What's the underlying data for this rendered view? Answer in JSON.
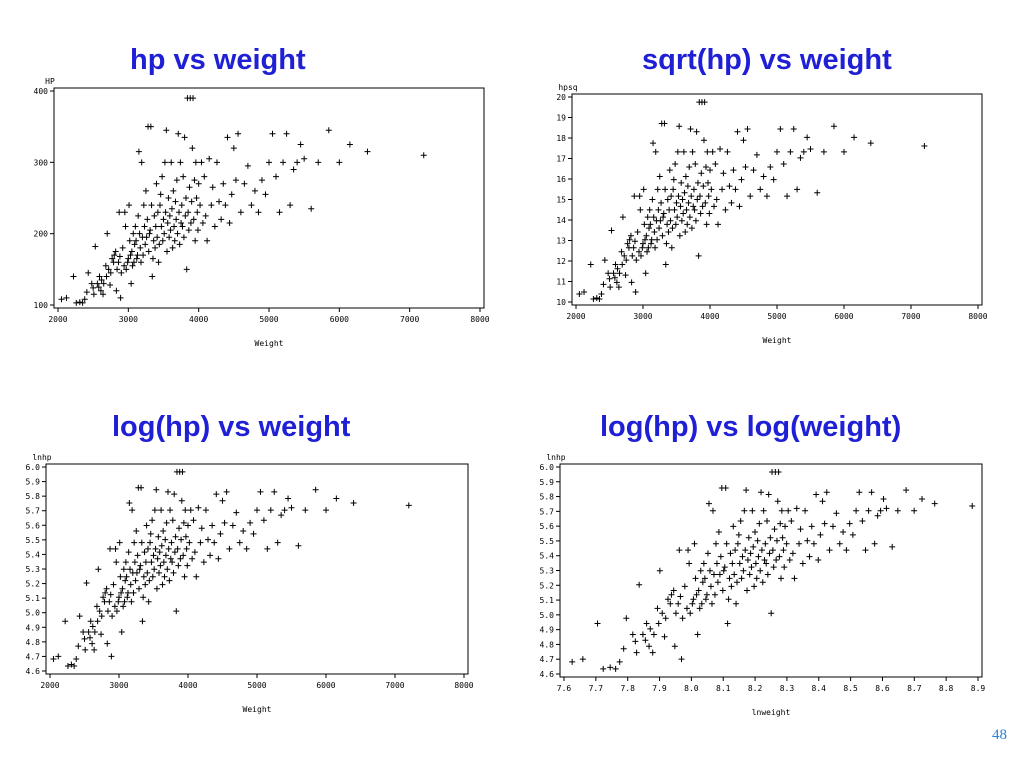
{
  "page": {
    "page_number": "48"
  },
  "colors": {
    "title": "#1f1fd6",
    "page_number": "#2a7fd6",
    "axes": "#000000",
    "marker": "#000000"
  },
  "chart_data": [
    {
      "type": "scatter",
      "title": "hp vs weight",
      "xlabel": "Weight",
      "ylabel": "HP",
      "xlim": [
        2000,
        8000
      ],
      "ylim": [
        100,
        400
      ],
      "xticks": [
        2000,
        3000,
        4000,
        5000,
        6000,
        7000,
        8000
      ],
      "yticks": [
        100,
        200,
        300,
        400
      ],
      "xtick_labels": [
        "2000",
        "3000",
        "4000",
        "5000",
        "6000",
        "7000",
        "8000"
      ],
      "ytick_labels": [
        "100",
        "200",
        "300",
        "400"
      ],
      "marker": "+",
      "grid": false
    },
    {
      "type": "scatter",
      "title": "sqrt(hp) vs weight",
      "xlabel": "Weight",
      "ylabel": "hpsq",
      "xlim": [
        2000,
        8000
      ],
      "ylim": [
        10,
        20
      ],
      "xticks": [
        2000,
        3000,
        4000,
        5000,
        6000,
        7000,
        8000
      ],
      "yticks": [
        10,
        11,
        12,
        13,
        14,
        15,
        16,
        17,
        18,
        19,
        20
      ],
      "xtick_labels": [
        "2000",
        "3000",
        "4000",
        "5000",
        "6000",
        "7000",
        "8000"
      ],
      "ytick_labels": [
        "10",
        "11",
        "12",
        "13",
        "14",
        "15",
        "16",
        "17",
        "18",
        "19",
        "20"
      ],
      "marker": "+",
      "grid": false
    },
    {
      "type": "scatter",
      "title": "log(hp) vs weight",
      "xlabel": "Weight",
      "ylabel": "lnhp",
      "xlim": [
        2000,
        8000
      ],
      "ylim": [
        4.6,
        6.0
      ],
      "xticks": [
        2000,
        3000,
        4000,
        5000,
        6000,
        7000,
        8000
      ],
      "yticks": [
        4.6,
        4.7,
        4.8,
        4.9,
        5.0,
        5.1,
        5.2,
        5.3,
        5.4,
        5.5,
        5.6,
        5.7,
        5.8,
        5.9,
        6.0
      ],
      "xtick_labels": [
        "2000",
        "3000",
        "4000",
        "5000",
        "6000",
        "7000",
        "8000"
      ],
      "ytick_labels": [
        "4.6",
        "4.7",
        "4.8",
        "4.9",
        "5.0",
        "5.1",
        "5.2",
        "5.3",
        "5.4",
        "5.5",
        "5.6",
        "5.7",
        "5.8",
        "5.9",
        "6.0"
      ],
      "marker": "+",
      "grid": false
    },
    {
      "type": "scatter",
      "title": "log(hp) vs log(weight)",
      "xlabel": "lnweight",
      "ylabel": "lnhp",
      "xlim": [
        7.6,
        8.9
      ],
      "ylim": [
        4.6,
        6.0
      ],
      "xticks": [
        7.6,
        7.7,
        7.8,
        7.9,
        8.0,
        8.1,
        8.2,
        8.3,
        8.4,
        8.5,
        8.6,
        8.7,
        8.8,
        8.9
      ],
      "yticks": [
        4.6,
        4.7,
        4.8,
        4.9,
        5.0,
        5.1,
        5.2,
        5.3,
        5.4,
        5.5,
        5.6,
        5.7,
        5.8,
        5.9,
        6.0
      ],
      "xtick_labels": [
        "7.6",
        "7.7",
        "7.8",
        "7.9",
        "8.0",
        "8.1",
        "8.2",
        "8.3",
        "8.4",
        "8.5",
        "8.6",
        "8.7",
        "8.8",
        "8.9"
      ],
      "ytick_labels": [
        "4.6",
        "4.7",
        "4.8",
        "4.9",
        "5.0",
        "5.1",
        "5.2",
        "5.3",
        "5.4",
        "5.5",
        "5.6",
        "5.7",
        "5.8",
        "5.9",
        "6.0"
      ],
      "marker": "+",
      "grid": false
    }
  ],
  "cars": {
    "columns": [
      "weight",
      "hp"
    ],
    "points": [
      [
        2050,
        108
      ],
      [
        2120,
        110
      ],
      [
        2220,
        140
      ],
      [
        2260,
        103
      ],
      [
        2310,
        104
      ],
      [
        2350,
        103
      ],
      [
        2380,
        108
      ],
      [
        2410,
        118
      ],
      [
        2430,
        145
      ],
      [
        2480,
        130
      ],
      [
        2500,
        124
      ],
      [
        2510,
        115
      ],
      [
        2530,
        182
      ],
      [
        2560,
        130
      ],
      [
        2580,
        125
      ],
      [
        2590,
        140
      ],
      [
        2610,
        120
      ],
      [
        2620,
        135
      ],
      [
        2640,
        115
      ],
      [
        2650,
        130
      ],
      [
        2680,
        155
      ],
      [
        2690,
        140
      ],
      [
        2700,
        200
      ],
      [
        2720,
        150
      ],
      [
        2740,
        128
      ],
      [
        2750,
        145
      ],
      [
        2770,
        165
      ],
      [
        2790,
        160
      ],
      [
        2800,
        170
      ],
      [
        2820,
        175
      ],
      [
        2830,
        120
      ],
      [
        2840,
        150
      ],
      [
        2860,
        160
      ],
      [
        2870,
        230
      ],
      [
        2880,
        168
      ],
      [
        2890,
        110
      ],
      [
        2900,
        145
      ],
      [
        2920,
        180
      ],
      [
        2940,
        155
      ],
      [
        2950,
        230
      ],
      [
        2960,
        210
      ],
      [
        2970,
        150
      ],
      [
        2990,
        160
      ],
      [
        3000,
        165
      ],
      [
        3010,
        240
      ],
      [
        3020,
        190
      ],
      [
        3030,
        170
      ],
      [
        3040,
        130
      ],
      [
        3050,
        175
      ],
      [
        3060,
        155
      ],
      [
        3070,
        200
      ],
      [
        3080,
        160
      ],
      [
        3090,
        185
      ],
      [
        3100,
        210
      ],
      [
        3110,
        190
      ],
      [
        3120,
        165
      ],
      [
        3130,
        170
      ],
      [
        3140,
        225
      ],
      [
        3150,
        315
      ],
      [
        3160,
        200
      ],
      [
        3170,
        180
      ],
      [
        3180,
        160
      ],
      [
        3190,
        300
      ],
      [
        3200,
        195
      ],
      [
        3210,
        170
      ],
      [
        3220,
        240
      ],
      [
        3230,
        210
      ],
      [
        3240,
        185
      ],
      [
        3250,
        260
      ],
      [
        3260,
        195
      ],
      [
        3270,
        220
      ],
      [
        3280,
        350
      ],
      [
        3290,
        175
      ],
      [
        3300,
        200
      ],
      [
        3310,
        205
      ],
      [
        3320,
        350
      ],
      [
        3330,
        240
      ],
      [
        3340,
        140
      ],
      [
        3350,
        165
      ],
      [
        3360,
        190
      ],
      [
        3370,
        225
      ],
      [
        3380,
        180
      ],
      [
        3390,
        210
      ],
      [
        3400,
        270
      ],
      [
        3410,
        195
      ],
      [
        3420,
        230
      ],
      [
        3430,
        160
      ],
      [
        3440,
        185
      ],
      [
        3450,
        240
      ],
      [
        3460,
        255
      ],
      [
        3470,
        210
      ],
      [
        3480,
        280
      ],
      [
        3490,
        190
      ],
      [
        3500,
        220
      ],
      [
        3510,
        200
      ],
      [
        3520,
        300
      ],
      [
        3530,
        230
      ],
      [
        3540,
        345
      ],
      [
        3550,
        175
      ],
      [
        3560,
        215
      ],
      [
        3570,
        250
      ],
      [
        3580,
        195
      ],
      [
        3590,
        225
      ],
      [
        3600,
        205
      ],
      [
        3610,
        300
      ],
      [
        3620,
        235
      ],
      [
        3630,
        180
      ],
      [
        3640,
        260
      ],
      [
        3650,
        210
      ],
      [
        3660,
        190
      ],
      [
        3670,
        245
      ],
      [
        3680,
        220
      ],
      [
        3690,
        275
      ],
      [
        3700,
        200
      ],
      [
        3710,
        340
      ],
      [
        3720,
        230
      ],
      [
        3730,
        185
      ],
      [
        3740,
        300
      ],
      [
        3750,
        215
      ],
      [
        3760,
        240
      ],
      [
        3770,
        210
      ],
      [
        3780,
        280
      ],
      [
        3790,
        195
      ],
      [
        3800,
        335
      ],
      [
        3810,
        225
      ],
      [
        3820,
        250
      ],
      [
        3830,
        150
      ],
      [
        3840,
        390
      ],
      [
        3850,
        230
      ],
      [
        3860,
        205
      ],
      [
        3870,
        265
      ],
      [
        3880,
        390
      ],
      [
        3890,
        215
      ],
      [
        3900,
        245
      ],
      [
        3910,
        320
      ],
      [
        3920,
        390
      ],
      [
        3930,
        220
      ],
      [
        3940,
        275
      ],
      [
        3950,
        190
      ],
      [
        3960,
        300
      ],
      [
        3970,
        250
      ],
      [
        3980,
        230
      ],
      [
        3990,
        205
      ],
      [
        4000,
        270
      ],
      [
        4020,
        240
      ],
      [
        4040,
        300
      ],
      [
        4060,
        215
      ],
      [
        4080,
        280
      ],
      [
        4100,
        225
      ],
      [
        4120,
        190
      ],
      [
        4150,
        305
      ],
      [
        4180,
        240
      ],
      [
        4200,
        265
      ],
      [
        4230,
        210
      ],
      [
        4260,
        300
      ],
      [
        4290,
        245
      ],
      [
        4320,
        220
      ],
      [
        4350,
        270
      ],
      [
        4380,
        240
      ],
      [
        4410,
        335
      ],
      [
        4440,
        215
      ],
      [
        4470,
        255
      ],
      [
        4500,
        320
      ],
      [
        4530,
        275
      ],
      [
        4560,
        340
      ],
      [
        4600,
        230
      ],
      [
        4650,
        270
      ],
      [
        4700,
        295
      ],
      [
        4750,
        240
      ],
      [
        4800,
        260
      ],
      [
        4850,
        230
      ],
      [
        4900,
        275
      ],
      [
        4950,
        255
      ],
      [
        5000,
        300
      ],
      [
        5050,
        340
      ],
      [
        5100,
        280
      ],
      [
        5150,
        230
      ],
      [
        5200,
        300
      ],
      [
        5250,
        340
      ],
      [
        5300,
        240
      ],
      [
        5350,
        290
      ],
      [
        5400,
        300
      ],
      [
        5450,
        325
      ],
      [
        5500,
        305
      ],
      [
        5600,
        235
      ],
      [
        5700,
        300
      ],
      [
        5850,
        345
      ],
      [
        6000,
        300
      ],
      [
        6150,
        325
      ],
      [
        6400,
        315
      ],
      [
        7200,
        310
      ]
    ]
  }
}
